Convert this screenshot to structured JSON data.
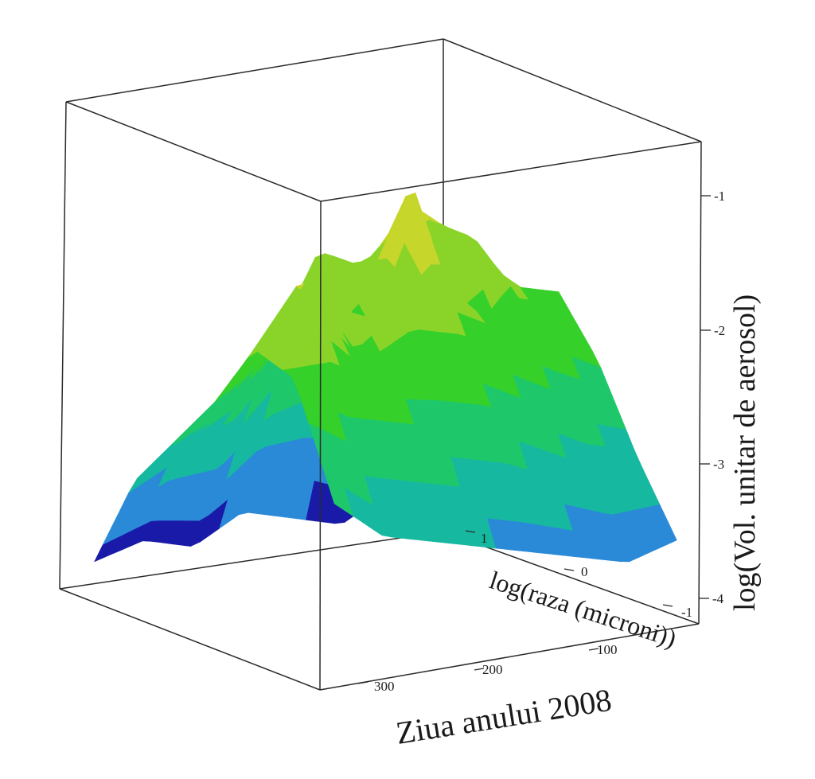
{
  "chart_data": {
    "type": "surface",
    "title": "",
    "xlabel": "Ziua anului 2008",
    "ylabel": "log(raza (microni))",
    "zlabel": "log(Vol. unitar de aerosol)",
    "x_ticks": [
      "100",
      "200",
      "300"
    ],
    "y_ticks": [
      "1",
      "0",
      "-1"
    ],
    "z_ticks": [
      "-1",
      "-2",
      "-3",
      "-4"
    ],
    "xlim": [
      30,
      340
    ],
    "ylim": [
      -1.3,
      1.3
    ],
    "zlim": [
      -4.1,
      -0.5
    ],
    "colormap": [
      "#1a1aa8",
      "#2a8ad8",
      "#16b8a0",
      "#1ec86a",
      "#36d02a",
      "#8ad42a",
      "#c6d62a",
      "#f0a010"
    ],
    "surface": {
      "note_values": "log volume at sampled (day, log radius) grid",
      "days": [
        40,
        80,
        120,
        160,
        200,
        240,
        280,
        320
      ],
      "log_radius": [
        -1.2,
        -0.8,
        -0.4,
        0.0,
        0.4,
        0.8,
        1.2
      ],
      "z": [
        [
          -3.6,
          -3.2,
          -2.6,
          -2.0,
          -2.4,
          -3.0,
          -3.5
        ],
        [
          -3.7,
          -2.8,
          -1.6,
          -1.9,
          -2.2,
          -2.9,
          -3.6
        ],
        [
          -3.9,
          -2.6,
          -1.3,
          -2.3,
          -2.0,
          -2.7,
          -3.5
        ],
        [
          -3.8,
          -2.3,
          -1.9,
          -1.0,
          -1.8,
          -2.5,
          -3.4
        ],
        [
          -3.7,
          -2.5,
          -1.5,
          -2.1,
          -1.7,
          -2.4,
          -3.3
        ],
        [
          -3.9,
          -2.9,
          -2.2,
          -1.6,
          -2.0,
          -2.3,
          -3.2
        ],
        [
          -3.8,
          -3.0,
          -2.6,
          -2.1,
          -1.4,
          -2.2,
          -3.1
        ],
        [
          -3.9,
          -3.2,
          -2.8,
          -2.4,
          -1.9,
          -2.0,
          -2.8
        ]
      ]
    }
  }
}
